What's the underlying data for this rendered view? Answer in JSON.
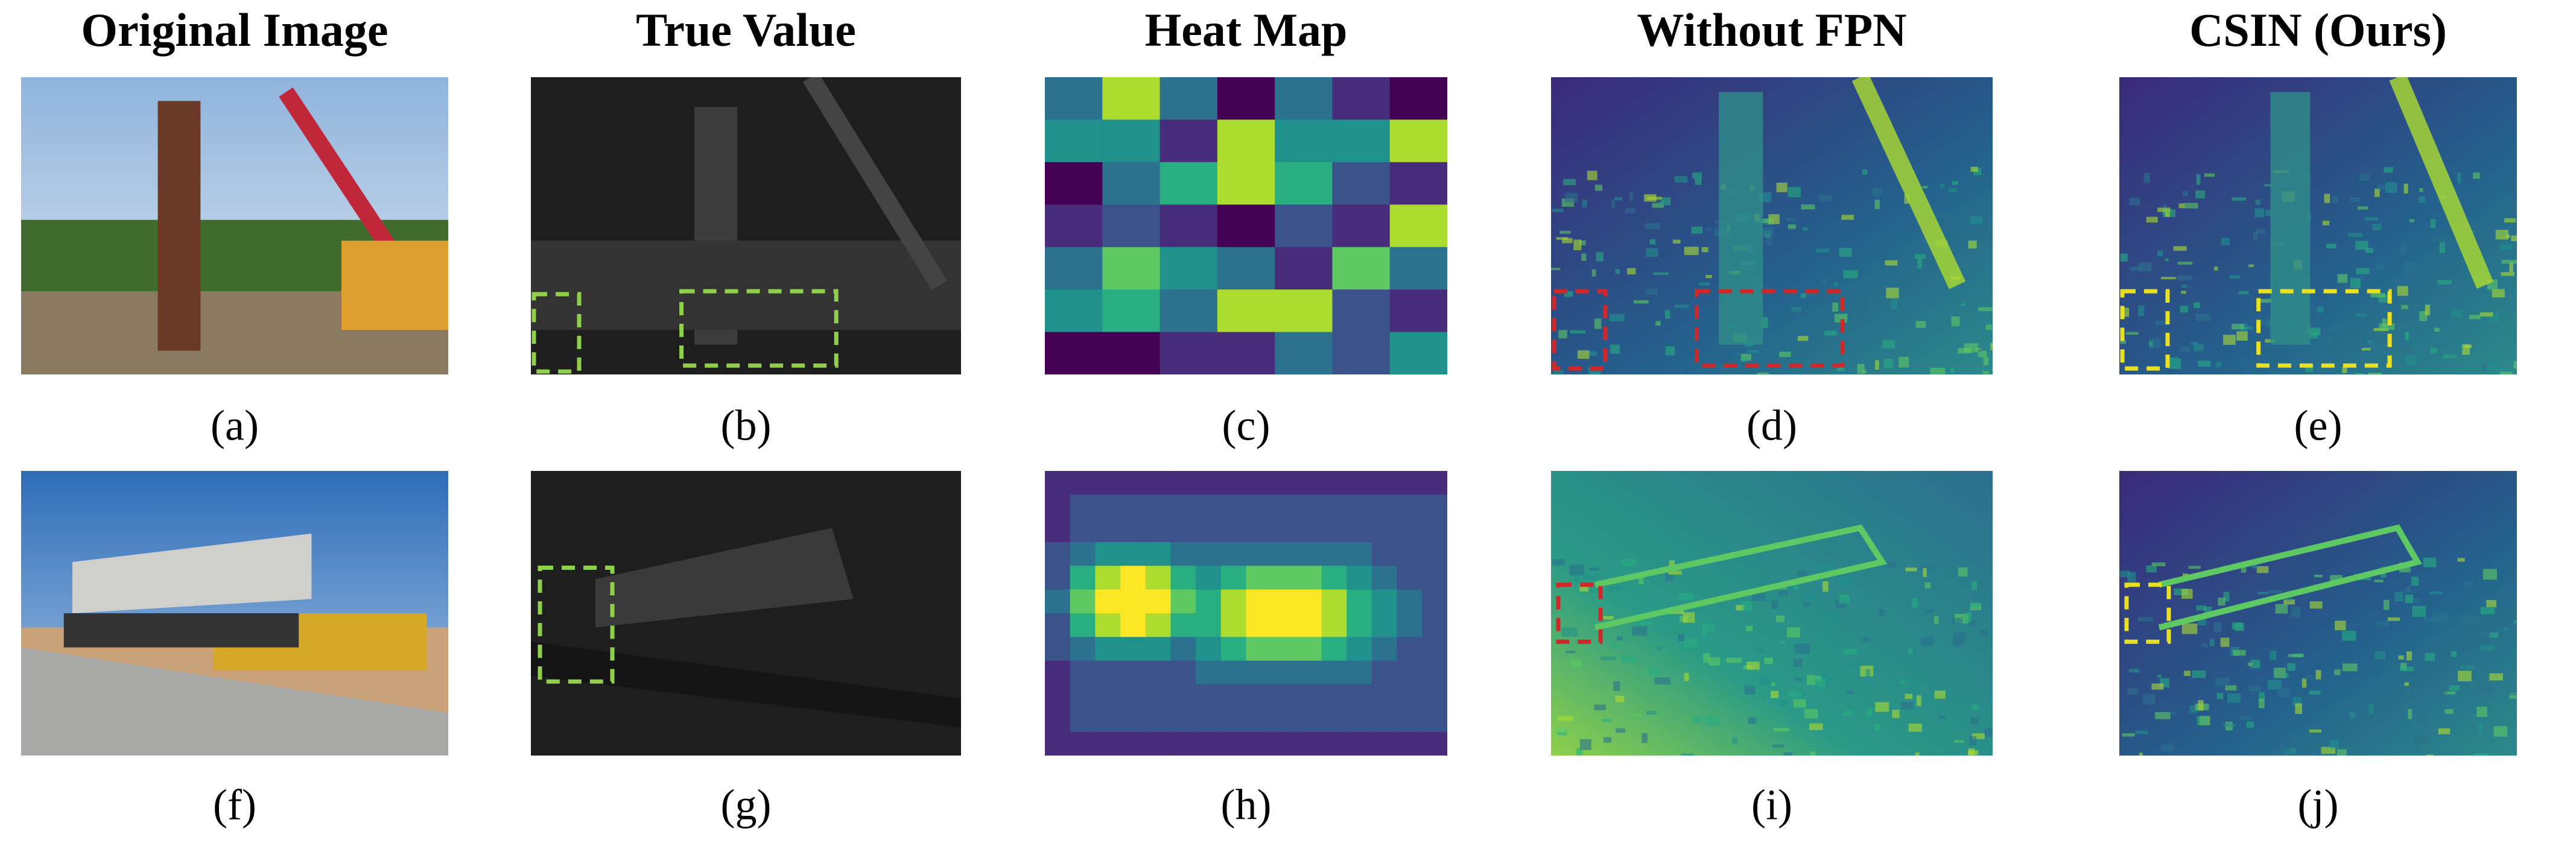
{
  "columns": [
    "Original Image",
    "True Value",
    "Heat Map",
    "Without FPN",
    "CSIN (Ours)"
  ],
  "panels": [
    [
      "(a)",
      "(b)",
      "(c)",
      "(d)",
      "(e)"
    ],
    [
      "(f)",
      "(g)",
      "(h)",
      "(i)",
      "(j)"
    ]
  ]
}
